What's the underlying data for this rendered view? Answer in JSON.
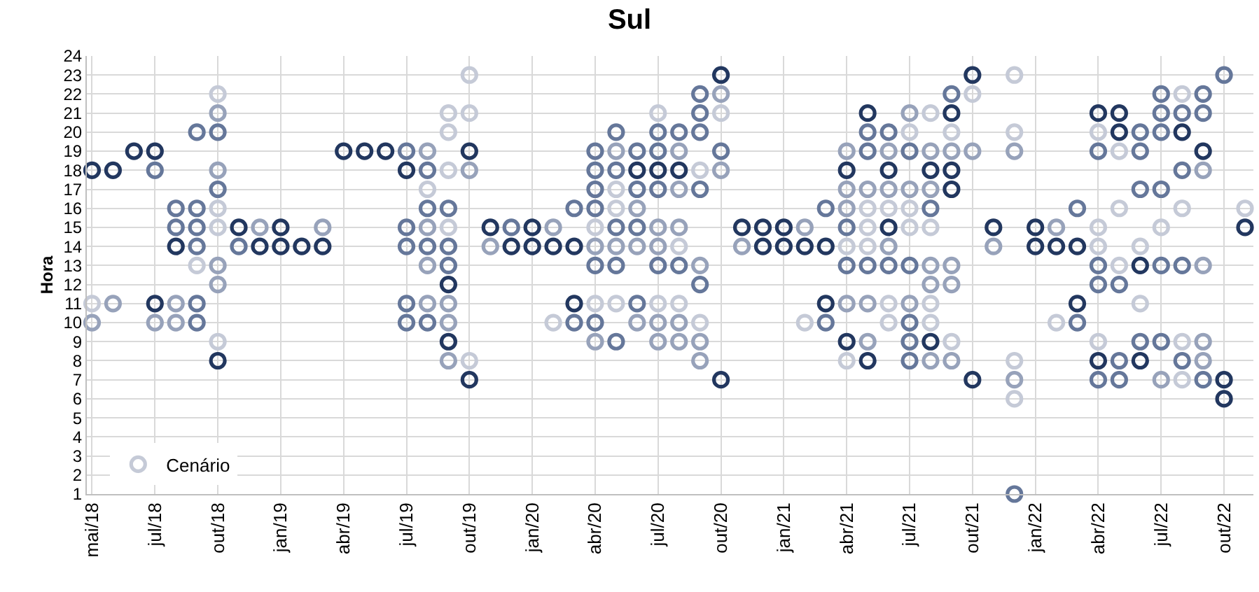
{
  "chart_data": {
    "type": "scatter",
    "title": "Sul",
    "ylabel": "Hora",
    "categories": [
      "mai/18",
      null,
      null,
      "jul/18",
      null,
      null,
      "out/18",
      null,
      null,
      "jan/19",
      null,
      null,
      "abr/19",
      null,
      null,
      "jul/19",
      null,
      null,
      "out/19",
      null,
      null,
      "jan/20",
      null,
      null,
      "abr/20",
      null,
      null,
      "jul/20",
      null,
      null,
      "out/20",
      null,
      null,
      "jan/21",
      null,
      null,
      "abr/21",
      null,
      null,
      "jul/21",
      null,
      null,
      "out/21",
      null,
      null,
      "jan/22",
      null,
      null,
      "abr/22",
      null,
      null,
      "jul/22",
      null,
      null,
      "out/22",
      null
    ],
    "series": [
      {
        "name": "Cenário",
        "values": [
          11,
          18,
          19,
          19,
          16,
          20,
          22,
          15,
          15,
          15,
          14,
          15,
          19,
          19,
          19,
          19,
          19,
          21,
          23,
          15,
          15,
          15,
          15,
          16,
          19,
          20,
          19,
          21,
          20,
          22,
          23,
          15,
          15,
          15,
          15,
          16,
          19,
          21,
          20,
          21,
          21,
          22,
          23,
          15,
          23,
          15,
          15,
          16,
          21,
          21,
          20,
          22,
          22,
          22,
          23,
          16
        ],
        "colors": [
          "#c5cad7",
          "#22375f",
          "#22375f",
          "#22375f",
          "#65779a",
          "#65779a",
          "#c5cad7",
          "#22375f",
          "#97a2ba",
          "#22375f",
          "#22375f",
          "#97a2ba",
          "#22375f",
          "#22375f",
          "#22375f",
          "#65779a",
          "#97a2ba",
          "#c5cad7",
          "#c5cad7",
          "#22375f",
          "#65779a",
          "#22375f",
          "#97a2ba",
          "#65779a",
          "#65779a",
          "#65779a",
          "#65779a",
          "#c5cad7",
          "#65779a",
          "#65779a",
          "#22375f",
          "#22375f",
          "#22375f",
          "#22375f",
          "#97a2ba",
          "#65779a",
          "#97a2ba",
          "#22375f",
          "#65779a",
          "#97a2ba",
          "#c5cad7",
          "#65779a",
          "#22375f",
          "#22375f",
          "#c5cad7",
          "#22375f",
          "#97a2ba",
          "#65779a",
          "#22375f",
          "#22375f",
          "#65779a",
          "#65779a",
          "#c5cad7",
          "#65779a",
          "#65779a",
          "#c5cad7"
        ]
      },
      {
        "values": [
          18,
          11,
          null,
          18,
          15,
          16,
          21,
          14,
          14,
          14,
          null,
          14,
          null,
          null,
          null,
          18,
          18,
          20,
          21,
          14,
          14,
          14,
          14,
          14,
          18,
          19,
          18,
          20,
          19,
          21,
          22,
          14,
          14,
          14,
          14,
          14,
          18,
          20,
          19,
          20,
          19,
          21,
          22,
          14,
          20,
          14,
          14,
          14,
          20,
          20,
          19,
          21,
          21,
          21,
          7,
          15
        ],
        "colors": [
          "#22375f",
          "#97a2ba",
          null,
          "#65779a",
          "#65779a",
          "#65779a",
          "#97a2ba",
          "#65779a",
          "#22375f",
          "#22375f",
          null,
          "#22375f",
          null,
          null,
          null,
          "#22375f",
          "#65779a",
          "#c5cad7",
          "#c5cad7",
          "#97a2ba",
          "#22375f",
          "#22375f",
          "#22375f",
          "#22375f",
          "#65779a",
          "#97a2ba",
          "#22375f",
          "#65779a",
          "#97a2ba",
          "#65779a",
          "#97a2ba",
          "#97a2ba",
          "#22375f",
          "#22375f",
          "#22375f",
          "#22375f",
          "#22375f",
          "#65779a",
          "#97a2ba",
          "#c5cad7",
          "#97a2ba",
          "#22375f",
          "#c5cad7",
          "#97a2ba",
          "#c5cad7",
          "#22375f",
          "#22375f",
          "#22375f",
          "#c5cad7",
          "#22375f",
          "#65779a",
          "#65779a",
          "#65779a",
          "#65779a",
          "#22375f",
          "#22375f"
        ]
      },
      {
        "values": [
          10,
          null,
          null,
          11,
          14,
          15,
          20,
          null,
          null,
          null,
          null,
          null,
          null,
          null,
          null,
          15,
          17,
          18,
          19,
          null,
          null,
          null,
          10,
          11,
          17,
          18,
          17,
          19,
          18,
          20,
          21,
          null,
          null,
          null,
          10,
          11,
          17,
          19,
          18,
          19,
          18,
          20,
          19,
          null,
          19,
          null,
          10,
          11,
          19,
          19,
          17,
          20,
          20,
          19,
          6,
          null
        ],
        "colors": [
          "#97a2ba",
          null,
          null,
          "#22375f",
          "#22375f",
          "#65779a",
          "#65779a",
          null,
          null,
          null,
          null,
          null,
          null,
          null,
          null,
          "#65779a",
          "#c5cad7",
          "#c5cad7",
          "#22375f",
          null,
          null,
          null,
          "#c5cad7",
          "#22375f",
          "#65779a",
          "#65779a",
          "#65779a",
          "#65779a",
          "#22375f",
          "#65779a",
          "#c5cad7",
          null,
          null,
          null,
          "#c5cad7",
          "#22375f",
          "#97a2ba",
          "#65779a",
          "#22375f",
          "#65779a",
          "#22375f",
          "#c5cad7",
          "#97a2ba",
          null,
          "#97a2ba",
          null,
          "#c5cad7",
          "#22375f",
          "#65779a",
          "#c5cad7",
          "#65779a",
          "#65779a",
          "#22375f",
          "#22375f",
          "#22375f",
          null
        ]
      },
      {
        "values": [
          null,
          null,
          null,
          10,
          11,
          14,
          18,
          null,
          null,
          null,
          null,
          null,
          null,
          null,
          null,
          14,
          16,
          16,
          18,
          null,
          null,
          null,
          null,
          10,
          16,
          17,
          16,
          18,
          17,
          18,
          19,
          null,
          null,
          null,
          null,
          10,
          16,
          17,
          17,
          17,
          17,
          19,
          7,
          null,
          8,
          null,
          null,
          10,
          15,
          16,
          14,
          17,
          18,
          18,
          null,
          null
        ],
        "colors": [
          null,
          null,
          null,
          "#97a2ba",
          "#97a2ba",
          "#65779a",
          "#97a2ba",
          null,
          null,
          null,
          null,
          null,
          null,
          null,
          null,
          "#65779a",
          "#65779a",
          "#65779a",
          "#97a2ba",
          null,
          null,
          null,
          null,
          "#65779a",
          "#65779a",
          "#c5cad7",
          "#97a2ba",
          "#22375f",
          "#97a2ba",
          "#c5cad7",
          "#65779a",
          null,
          null,
          null,
          null,
          "#65779a",
          "#97a2ba",
          "#97a2ba",
          "#97a2ba",
          "#97a2ba",
          "#97a2ba",
          "#97a2ba",
          "#22375f",
          null,
          "#c5cad7",
          null,
          null,
          "#65779a",
          "#c5cad7",
          "#c5cad7",
          "#c5cad7",
          "#65779a",
          "#65779a",
          "#97a2ba",
          null,
          null
        ]
      },
      {
        "values": [
          null,
          null,
          null,
          null,
          10,
          13,
          17,
          null,
          null,
          null,
          null,
          null,
          null,
          null,
          null,
          11,
          15,
          15,
          8,
          null,
          null,
          null,
          null,
          null,
          15,
          16,
          15,
          17,
          15,
          17,
          18,
          null,
          null,
          null,
          null,
          null,
          15,
          16,
          16,
          16,
          16,
          18,
          null,
          null,
          7,
          null,
          null,
          null,
          14,
          13,
          13,
          15,
          16,
          13,
          null,
          null
        ],
        "colors": [
          null,
          null,
          null,
          null,
          "#97a2ba",
          "#c5cad7",
          "#65779a",
          null,
          null,
          null,
          null,
          null,
          null,
          null,
          null,
          "#65779a",
          "#97a2ba",
          "#c5cad7",
          "#c5cad7",
          null,
          null,
          null,
          null,
          null,
          "#c5cad7",
          "#c5cad7",
          "#65779a",
          "#65779a",
          "#97a2ba",
          "#65779a",
          "#97a2ba",
          null,
          null,
          null,
          null,
          null,
          "#65779a",
          "#c5cad7",
          "#c5cad7",
          "#c5cad7",
          "#65779a",
          "#22375f",
          null,
          null,
          "#97a2ba",
          null,
          null,
          null,
          "#c5cad7",
          "#c5cad7",
          "#22375f",
          "#c5cad7",
          "#c5cad7",
          "#97a2ba",
          null,
          null
        ]
      },
      {
        "values": [
          null,
          null,
          null,
          null,
          null,
          11,
          16,
          null,
          null,
          null,
          null,
          null,
          null,
          null,
          null,
          10,
          14,
          14,
          7,
          null,
          null,
          null,
          null,
          null,
          14,
          15,
          14,
          15,
          14,
          13,
          7,
          null,
          null,
          null,
          null,
          null,
          14,
          15,
          15,
          15,
          15,
          17,
          null,
          null,
          6,
          null,
          null,
          null,
          13,
          12,
          11,
          13,
          13,
          9,
          null,
          null
        ],
        "colors": [
          null,
          null,
          null,
          null,
          null,
          "#65779a",
          "#c5cad7",
          null,
          null,
          null,
          null,
          null,
          null,
          null,
          null,
          "#65779a",
          "#65779a",
          "#65779a",
          "#22375f",
          null,
          null,
          null,
          null,
          null,
          "#97a2ba",
          "#65779a",
          "#97a2ba",
          "#97a2ba",
          "#c5cad7",
          "#97a2ba",
          "#22375f",
          null,
          null,
          null,
          null,
          null,
          "#c5cad7",
          "#c5cad7",
          "#22375f",
          "#c5cad7",
          "#c5cad7",
          "#22375f",
          null,
          null,
          "#c5cad7",
          null,
          null,
          null,
          "#65779a",
          "#65779a",
          "#c5cad7",
          "#65779a",
          "#65779a",
          "#97a2ba",
          null,
          null
        ]
      },
      {
        "values": [
          null,
          null,
          null,
          null,
          null,
          10,
          15,
          null,
          null,
          null,
          null,
          null,
          null,
          null,
          null,
          null,
          13,
          13,
          null,
          null,
          null,
          null,
          null,
          null,
          13,
          14,
          11,
          14,
          13,
          12,
          null,
          null,
          null,
          null,
          null,
          null,
          13,
          14,
          14,
          13,
          13,
          13,
          null,
          null,
          1,
          null,
          null,
          null,
          12,
          8,
          9,
          9,
          9,
          8,
          null,
          null
        ],
        "colors": [
          null,
          null,
          null,
          null,
          null,
          "#65779a",
          "#c5cad7",
          null,
          null,
          null,
          null,
          null,
          null,
          null,
          null,
          null,
          "#97a2ba",
          "#65779a",
          null,
          null,
          null,
          null,
          null,
          null,
          "#65779a",
          "#97a2ba",
          "#65779a",
          "#97a2ba",
          "#65779a",
          "#65779a",
          null,
          null,
          null,
          null,
          null,
          null,
          "#65779a",
          "#c5cad7",
          "#97a2ba",
          "#65779a",
          "#97a2ba",
          "#97a2ba",
          null,
          null,
          "#65779a",
          null,
          null,
          null,
          "#65779a",
          "#65779a",
          "#65779a",
          "#65779a",
          "#c5cad7",
          "#97a2ba",
          null,
          null
        ]
      },
      {
        "values": [
          null,
          null,
          null,
          null,
          null,
          null,
          13,
          null,
          null,
          null,
          null,
          null,
          null,
          null,
          null,
          null,
          11,
          12,
          null,
          null,
          null,
          null,
          null,
          null,
          11,
          13,
          10,
          13,
          11,
          10,
          null,
          null,
          null,
          null,
          null,
          null,
          11,
          13,
          13,
          11,
          12,
          12,
          null,
          null,
          null,
          null,
          null,
          null,
          9,
          7,
          8,
          7,
          8,
          7,
          null,
          null
        ],
        "colors": [
          null,
          null,
          null,
          null,
          null,
          null,
          "#97a2ba",
          null,
          null,
          null,
          null,
          null,
          null,
          null,
          null,
          null,
          "#97a2ba",
          "#22375f",
          null,
          null,
          null,
          null,
          null,
          null,
          "#c5cad7",
          "#65779a",
          "#97a2ba",
          "#65779a",
          "#c5cad7",
          "#c5cad7",
          null,
          null,
          null,
          null,
          null,
          null,
          "#97a2ba",
          "#65779a",
          "#65779a",
          "#97a2ba",
          "#97a2ba",
          "#97a2ba",
          null,
          null,
          null,
          null,
          null,
          null,
          "#c5cad7",
          "#65779a",
          "#22375f",
          "#97a2ba",
          "#65779a",
          "#65779a",
          null,
          null
        ]
      },
      {
        "values": [
          null,
          null,
          null,
          null,
          null,
          null,
          12,
          null,
          null,
          null,
          null,
          null,
          null,
          null,
          null,
          null,
          10,
          11,
          null,
          null,
          null,
          null,
          null,
          null,
          10,
          11,
          null,
          11,
          10,
          9,
          null,
          null,
          null,
          null,
          null,
          null,
          9,
          11,
          11,
          10,
          11,
          9,
          null,
          null,
          null,
          null,
          null,
          null,
          8,
          null,
          null,
          null,
          7,
          null,
          null,
          null
        ],
        "colors": [
          null,
          null,
          null,
          null,
          null,
          null,
          "#97a2ba",
          null,
          null,
          null,
          null,
          null,
          null,
          null,
          null,
          null,
          "#65779a",
          "#97a2ba",
          null,
          null,
          null,
          null,
          null,
          null,
          "#65779a",
          "#c5cad7",
          null,
          "#c5cad7",
          "#97a2ba",
          "#97a2ba",
          null,
          null,
          null,
          null,
          null,
          null,
          "#22375f",
          "#97a2ba",
          "#c5cad7",
          "#65779a",
          "#c5cad7",
          "#c5cad7",
          null,
          null,
          null,
          null,
          null,
          null,
          "#22375f",
          null,
          null,
          null,
          "#c5cad7",
          null,
          null,
          null
        ]
      },
      {
        "values": [
          null,
          null,
          null,
          null,
          null,
          null,
          9,
          null,
          null,
          null,
          null,
          null,
          null,
          null,
          null,
          null,
          null,
          10,
          null,
          null,
          null,
          null,
          null,
          null,
          9,
          9,
          null,
          10,
          9,
          8,
          null,
          null,
          null,
          null,
          null,
          null,
          8,
          9,
          10,
          9,
          10,
          8,
          null,
          null,
          null,
          null,
          null,
          null,
          7,
          null,
          null,
          null,
          null,
          null,
          null,
          null
        ],
        "colors": [
          null,
          null,
          null,
          null,
          null,
          null,
          "#c5cad7",
          null,
          null,
          null,
          null,
          null,
          null,
          null,
          null,
          null,
          null,
          "#97a2ba",
          null,
          null,
          null,
          null,
          null,
          null,
          "#97a2ba",
          "#65779a",
          null,
          "#97a2ba",
          "#97a2ba",
          "#97a2ba",
          null,
          null,
          null,
          null,
          null,
          null,
          "#c5cad7",
          "#97a2ba",
          "#c5cad7",
          "#65779a",
          "#c5cad7",
          "#97a2ba",
          null,
          null,
          null,
          null,
          null,
          null,
          "#65779a",
          null,
          null,
          null,
          null,
          null,
          null,
          null
        ]
      },
      {
        "values": [
          null,
          null,
          null,
          null,
          null,
          null,
          8,
          null,
          null,
          null,
          null,
          null,
          null,
          null,
          null,
          null,
          null,
          9,
          null,
          null,
          null,
          null,
          null,
          null,
          null,
          null,
          null,
          9,
          null,
          null,
          null,
          null,
          null,
          null,
          null,
          null,
          null,
          8,
          null,
          8,
          9,
          null,
          null,
          null,
          null,
          null,
          null,
          null,
          null,
          null,
          null,
          null,
          null,
          null,
          null,
          null
        ],
        "colors": [
          null,
          null,
          null,
          null,
          null,
          null,
          "#22375f",
          null,
          null,
          null,
          null,
          null,
          null,
          null,
          null,
          null,
          null,
          "#22375f",
          null,
          null,
          null,
          null,
          null,
          null,
          null,
          null,
          null,
          "#97a2ba",
          null,
          null,
          null,
          null,
          null,
          null,
          null,
          null,
          null,
          "#22375f",
          null,
          "#65779a",
          "#22375f",
          null,
          null,
          null,
          null,
          null,
          null,
          null,
          null,
          null,
          null,
          null,
          null,
          null,
          null,
          null
        ]
      },
      {
        "values": [
          null,
          null,
          null,
          null,
          null,
          null,
          null,
          null,
          null,
          null,
          null,
          null,
          null,
          null,
          null,
          null,
          null,
          8,
          null,
          null,
          null,
          null,
          null,
          null,
          null,
          null,
          null,
          null,
          null,
          null,
          null,
          null,
          null,
          null,
          null,
          null,
          null,
          null,
          null,
          null,
          8,
          null,
          null,
          null,
          null,
          null,
          null,
          null,
          null,
          null,
          null,
          null,
          null,
          null,
          null,
          null
        ],
        "colors": [
          null,
          null,
          null,
          null,
          null,
          null,
          null,
          null,
          null,
          null,
          null,
          null,
          null,
          null,
          null,
          null,
          null,
          "#97a2ba",
          null,
          null,
          null,
          null,
          null,
          null,
          null,
          null,
          null,
          null,
          null,
          null,
          null,
          null,
          null,
          null,
          null,
          null,
          null,
          null,
          null,
          null,
          "#97a2ba",
          null,
          null,
          null,
          null,
          null,
          null,
          null,
          null,
          null,
          null,
          null,
          null,
          null,
          null,
          null
        ]
      }
    ],
    "ylim": [
      1,
      24
    ],
    "yticks": [
      1,
      2,
      3,
      4,
      5,
      6,
      7,
      8,
      9,
      10,
      11,
      12,
      13,
      14,
      15,
      16,
      17,
      18,
      19,
      20,
      21,
      22,
      23,
      24
    ],
    "grid": true,
    "legend": "bottom left",
    "marker": "circle"
  }
}
